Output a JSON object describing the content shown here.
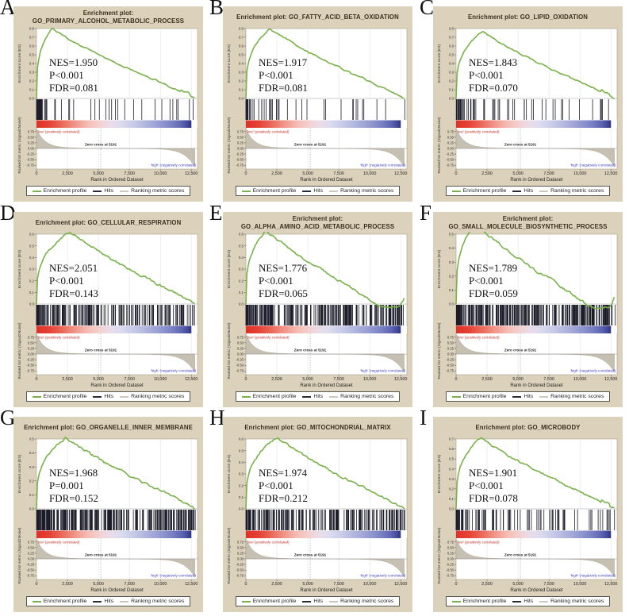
{
  "figure": {
    "colors": {
      "panel_bg": "#dcd2bc",
      "curve_green": "#79b24a",
      "hits_color": "#1c1c2a",
      "mountain_fill": "#c6c0b2",
      "pos_label_color": "#c03028",
      "neg_label_color": "#3c3cc0",
      "title_color": "#3b2f1e"
    },
    "es_axis_label": "Enrichment score (ES)",
    "metric_axis_label": "Ranked list metric (Signal2Noise)",
    "metric_ticks": [
      "0.75",
      "0.50",
      "0.25",
      "0.00",
      "-0.25",
      "-0.50",
      "-0.75"
    ],
    "metric_tick_values": [
      0.75,
      0.5,
      0.25,
      0,
      -0.25,
      -0.5,
      -0.75
    ],
    "x_axis": {
      "label": "Rank in Ordered Dataset",
      "ticks": [
        "0",
        "2,500",
        "5,000",
        "7,500",
        "10,000",
        "12,500"
      ],
      "tick_values": [
        0,
        2500,
        5000,
        7500,
        10000,
        12500
      ],
      "max": 13000
    },
    "zero_cross_label": "Zero cross at 5191",
    "zero_cross_rank": 5191,
    "pos_label": "'low' (positively correlated)",
    "neg_label": "'high' (negatively correlated)",
    "legend_items": [
      {
        "label": "Enrichment profile",
        "color": "#79b24a"
      },
      {
        "label": "Hits",
        "color": "#2a2a3a"
      },
      {
        "label": "Ranking metric scores",
        "color": "#cfc8ba"
      }
    ]
  },
  "chart_data": [
    {
      "type": "line",
      "label": "A",
      "title_line1": "Enrichment plot:",
      "title_line2": "GO_PRIMARY_ALCOHOL_METABOLIC_PROCESS",
      "stats": {
        "nes": "NES=1.950",
        "p": "P<0.001",
        "fdr": "FDR=0.081"
      },
      "es_axis": {
        "ticks": [
          "0.8",
          "0.7",
          "0.6",
          "0.5",
          "0.4",
          "0.3",
          "0.2",
          "0.1",
          "0.0"
        ],
        "max": 0.8
      },
      "curve": {
        "peak_es": 0.8,
        "peak_rank": 1250,
        "end_bump": true,
        "end_dip": false
      },
      "hits": {
        "count": 55,
        "bias": 2.1,
        "seed": 11
      }
    },
    {
      "type": "line",
      "label": "B",
      "title_line1": "Enrichment plot: GO_FATTY_ACID_BETA_OXIDATION",
      "title_line2": null,
      "stats": {
        "nes": "NES=1.917",
        "p": "P<0.001",
        "fdr": "FDR=0.081"
      },
      "es_axis": {
        "ticks": [
          "0.8",
          "0.7",
          "0.6",
          "0.5",
          "0.4",
          "0.3",
          "0.2",
          "0.1",
          "0.0"
        ],
        "max": 0.8
      },
      "curve": {
        "peak_es": 0.8,
        "peak_rank": 1900,
        "end_bump": false,
        "end_dip": false
      },
      "hits": {
        "count": 46,
        "bias": 2.0,
        "seed": 22
      }
    },
    {
      "type": "line",
      "label": "C",
      "title_line1": "Enrichment plot: GO_LIPID_OXIDATION",
      "title_line2": null,
      "stats": {
        "nes": "NES=1.843",
        "p": "P<0.001",
        "fdr": "FDR=0.070"
      },
      "es_axis": {
        "ticks": [
          "0.8",
          "0.7",
          "0.6",
          "0.5",
          "0.4",
          "0.3",
          "0.2",
          "0.1",
          "0.0"
        ],
        "max": 0.8
      },
      "curve": {
        "peak_es": 0.77,
        "peak_rank": 2100,
        "end_bump": true,
        "end_dip": false
      },
      "hits": {
        "count": 62,
        "bias": 1.9,
        "seed": 33
      }
    },
    {
      "type": "line",
      "label": "D",
      "title_line1": "Enrichment plot: GO_CELLULAR_RESPIRATION",
      "title_line2": null,
      "stats": {
        "nes": "NES=2.051",
        "p": "P<0.001",
        "fdr": "FDR=0.143"
      },
      "es_axis": {
        "ticks": [
          "0.6",
          "0.5",
          "0.4",
          "0.3",
          "0.2",
          "0.1",
          "0.0"
        ],
        "max": 0.6
      },
      "curve": {
        "peak_es": 0.62,
        "peak_rank": 2700,
        "end_bump": false,
        "end_dip": false
      },
      "hits": {
        "count": 190,
        "bias": 1.3,
        "seed": 44
      }
    },
    {
      "type": "line",
      "label": "E",
      "title_line1": "Enrichment plot:",
      "title_line2": "GO_ALPHA_AMINO_ACID_METABOLIC_PROCESS",
      "stats": {
        "nes": "NES=1.776",
        "p": "P<0.001",
        "fdr": "FDR=0.065"
      },
      "es_axis": {
        "ticks": [
          "0.6",
          "0.5",
          "0.4",
          "0.3",
          "0.2",
          "0.1",
          "0.0"
        ],
        "max": 0.6
      },
      "curve": {
        "peak_es": 0.63,
        "peak_rank": 1600,
        "end_bump": false,
        "end_dip": true
      },
      "hits": {
        "count": 250,
        "bias": 1.15,
        "seed": 55
      }
    },
    {
      "type": "line",
      "label": "F",
      "title_line1": "Enrichment plot:",
      "title_line2": "GO_SMALL_MOLECULE_BIOSYNTHETIC_PROCESS",
      "stats": {
        "nes": "NES=1.789",
        "p": "P<0.001",
        "fdr": "FDR=0.059"
      },
      "es_axis": {
        "ticks": [
          "0.5",
          "0.4",
          "0.3",
          "0.2",
          "0.1",
          "0.0"
        ],
        "max": 0.5
      },
      "curve": {
        "peak_es": 0.57,
        "peak_rank": 1500,
        "end_bump": false,
        "end_dip": true
      },
      "hits": {
        "count": 300,
        "bias": 1.1,
        "seed": 66
      }
    },
    {
      "type": "line",
      "label": "G",
      "title_line1": "Enrichment plot: GO_ORGANELLE_INNER_MEMBRANE",
      "title_line2": null,
      "stats": {
        "nes": "NES=1.968",
        "p": "P=0.001",
        "fdr": "FDR=0.152"
      },
      "es_axis": {
        "ticks": [
          "0.5",
          "0.4",
          "0.3",
          "0.2",
          "0.1",
          "0.0"
        ],
        "max": 0.5
      },
      "curve": {
        "peak_es": 0.51,
        "peak_rank": 2300,
        "end_bump": false,
        "end_dip": false
      },
      "hits": {
        "count": 270,
        "bias": 1.2,
        "seed": 77
      }
    },
    {
      "type": "line",
      "label": "H",
      "title_line1": "Enrichment plot: GO_MITOCHONDRIAL_MATRIX",
      "title_line2": null,
      "stats": {
        "nes": "NES=1.974",
        "p": "P<0.001",
        "fdr": "FDR=0.212"
      },
      "es_axis": {
        "ticks": [
          "0.6",
          "0.5",
          "0.4",
          "0.3",
          "0.2",
          "0.1",
          "0.0"
        ],
        "max": 0.6
      },
      "curve": {
        "peak_es": 0.61,
        "peak_rank": 2500,
        "end_bump": false,
        "end_dip": false
      },
      "hits": {
        "count": 210,
        "bias": 1.25,
        "seed": 88
      }
    },
    {
      "type": "line",
      "label": "I",
      "title_line1": "Enrichment plot: GO_MICROBODY",
      "title_line2": null,
      "stats": {
        "nes": "NES=1.901",
        "p": "P<0.001",
        "fdr": "FDR=0.078"
      },
      "es_axis": {
        "ticks": [
          "0.7",
          "0.6",
          "0.5",
          "0.4",
          "0.3",
          "0.2",
          "0.1",
          "0.0"
        ],
        "max": 0.7
      },
      "curve": {
        "peak_es": 0.71,
        "peak_rank": 2000,
        "end_bump": true,
        "end_dip": false
      },
      "hits": {
        "count": 108,
        "bias": 1.6,
        "seed": 99
      }
    }
  ]
}
